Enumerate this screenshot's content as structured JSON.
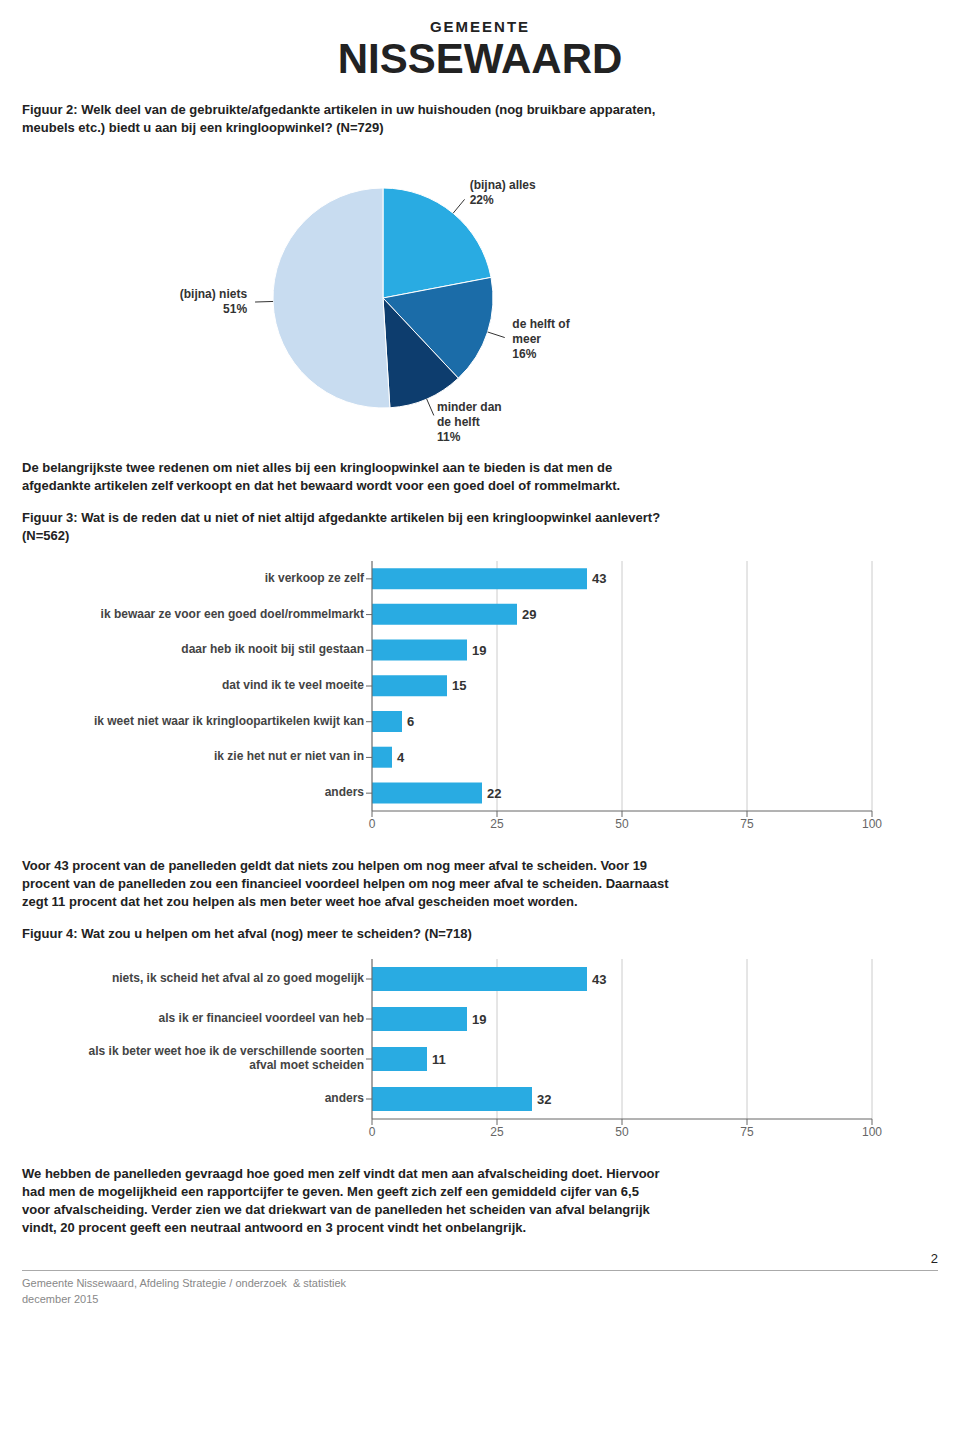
{
  "page": {
    "header": [
      "GEMEENTE",
      "NISSEWAARD"
    ],
    "page_number": "2",
    "footer": [
      "Gemeente Nissewaard, Afdeling Strategie / onderzoek  & statistiek",
      "december 2015"
    ]
  },
  "chart_data": [
    {
      "type": "pie",
      "title": "Figuur 2: Welk deel van de gebruikte/afgedankte artikelen in uw huishouden (nog bruikbare apparaten,\nmeubels etc.) biedt u aan bij een kringloopwinkel? (N=729)",
      "categories": [
        "(bijna) alles",
        "de helft of\nmeer",
        "minder dan\nde helft",
        "(bijna) niets"
      ],
      "values": [
        22,
        16,
        11,
        51
      ],
      "value_labels": [
        "22%",
        "16%",
        "11%",
        "51%"
      ],
      "colors": [
        "#29ABE2",
        "#1B6CA8",
        "#0D3D6E",
        "#C8DCF0"
      ],
      "data_labels": true,
      "annotations": [
        "De belangrijkste twee redenen om niet alles bij een kringloopwinkel aan te bieden is dat men de",
        "afgedankte artikelen zelf verkoopt en dat het bewaard wordt voor een goed doel of rommelmarkt."
      ]
    },
    {
      "type": "bar",
      "orientation": "horizontal",
      "title": "Figuur 3: Wat is de reden dat u niet of niet altijd afgedankte artikelen bij een kringloopwinkel aanlevert?\n(N=562)",
      "categories": [
        "ik verkoop ze zelf",
        "ik bewaar ze voor een goed doel/rommelmarkt",
        "daar heb ik nooit bij stil gestaan",
        "dat vind ik te veel moeite",
        "ik weet niet waar ik kringloopartikelen kwijt kan",
        "ik zie het nut er niet van in",
        "anders"
      ],
      "values": [
        43,
        29,
        19,
        15,
        6,
        4,
        22
      ],
      "color": "#29ABE2",
      "xlim": [
        0,
        100
      ],
      "xticks": [
        0,
        25,
        50,
        75,
        100
      ],
      "grid": true,
      "data_labels": true,
      "annotations": [
        "Voor 43 procent van de panelleden geldt dat niets zou helpen om nog meer afval te scheiden. Voor 19",
        "procent van de panelleden zou een financieel voordeel helpen om nog meer afval te scheiden. Daarnaast",
        "zegt 11 procent dat het zou helpen als men beter weet hoe afval gescheiden moet worden."
      ]
    },
    {
      "type": "bar",
      "orientation": "horizontal",
      "title": "Figuur 4: Wat zou u helpen om het afval (nog) meer te scheiden? (N=718)",
      "categories": [
        "niets, ik scheid het afval al zo goed mogelijk",
        "als ik er financieel voordeel van heb",
        "als ik beter weet hoe ik de verschillende soorten\nafval moet scheiden",
        "anders"
      ],
      "values": [
        43,
        19,
        11,
        32
      ],
      "color": "#29ABE2",
      "xlim": [
        0,
        100
      ],
      "xticks": [
        0,
        25,
        50,
        75,
        100
      ],
      "grid": true,
      "data_labels": true,
      "annotations": [
        "We hebben de panelleden gevraagd hoe goed men zelf vindt dat men aan afvalscheiding doet. Hiervoor",
        "had men de mogelijkheid een rapportcijfer te geven. Men geeft zich zelf een gemiddeld cijfer van 6,5",
        "voor afvalscheiding. Verder zien we dat driekwart van de panelleden het scheiden van afval belangrijk",
        "vindt, 20 procent geeft een neutraal antwoord en 3 procent vindt het onbelangrijk."
      ]
    }
  ]
}
